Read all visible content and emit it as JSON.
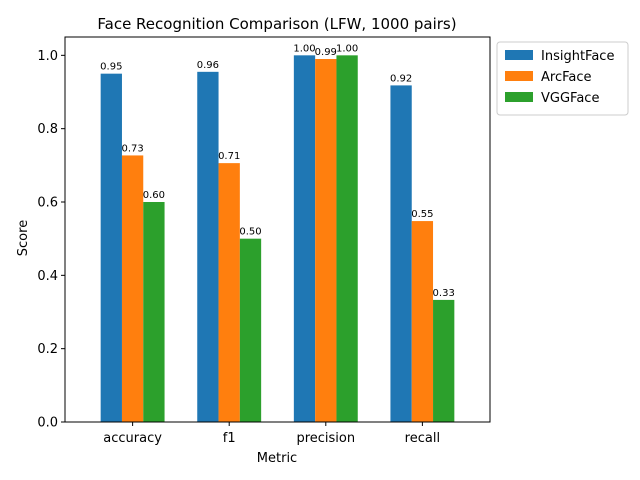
{
  "chart_data": {
    "type": "bar",
    "title": "Face Recognition Comparison (LFW, 1000 pairs)",
    "xlabel": "Metric",
    "ylabel": "Score",
    "categories": [
      "accuracy",
      "f1",
      "precision",
      "recall"
    ],
    "ylim": [
      0,
      1.05
    ],
    "yticks": [
      "0.0",
      "0.2",
      "0.4",
      "0.6",
      "0.8",
      "1.0"
    ],
    "legend_position": "upper-right-outside",
    "series": [
      {
        "name": "InsightFace",
        "color": "#1f77b4",
        "values": [
          0.95,
          0.955,
          1.0,
          0.918
        ],
        "labels": [
          "0.95",
          "0.96",
          "1.00",
          "0.92"
        ]
      },
      {
        "name": "ArcFace",
        "color": "#ff7f0e",
        "values": [
          0.727,
          0.706,
          0.99,
          0.548
        ],
        "labels": [
          "0.73",
          "0.71",
          "0.99",
          "0.55"
        ]
      },
      {
        "name": "VGGFace",
        "color": "#2ca02c",
        "values": [
          0.6,
          0.5,
          1.0,
          0.333
        ],
        "labels": [
          "0.60",
          "0.50",
          "1.00",
          "0.33"
        ]
      }
    ]
  }
}
